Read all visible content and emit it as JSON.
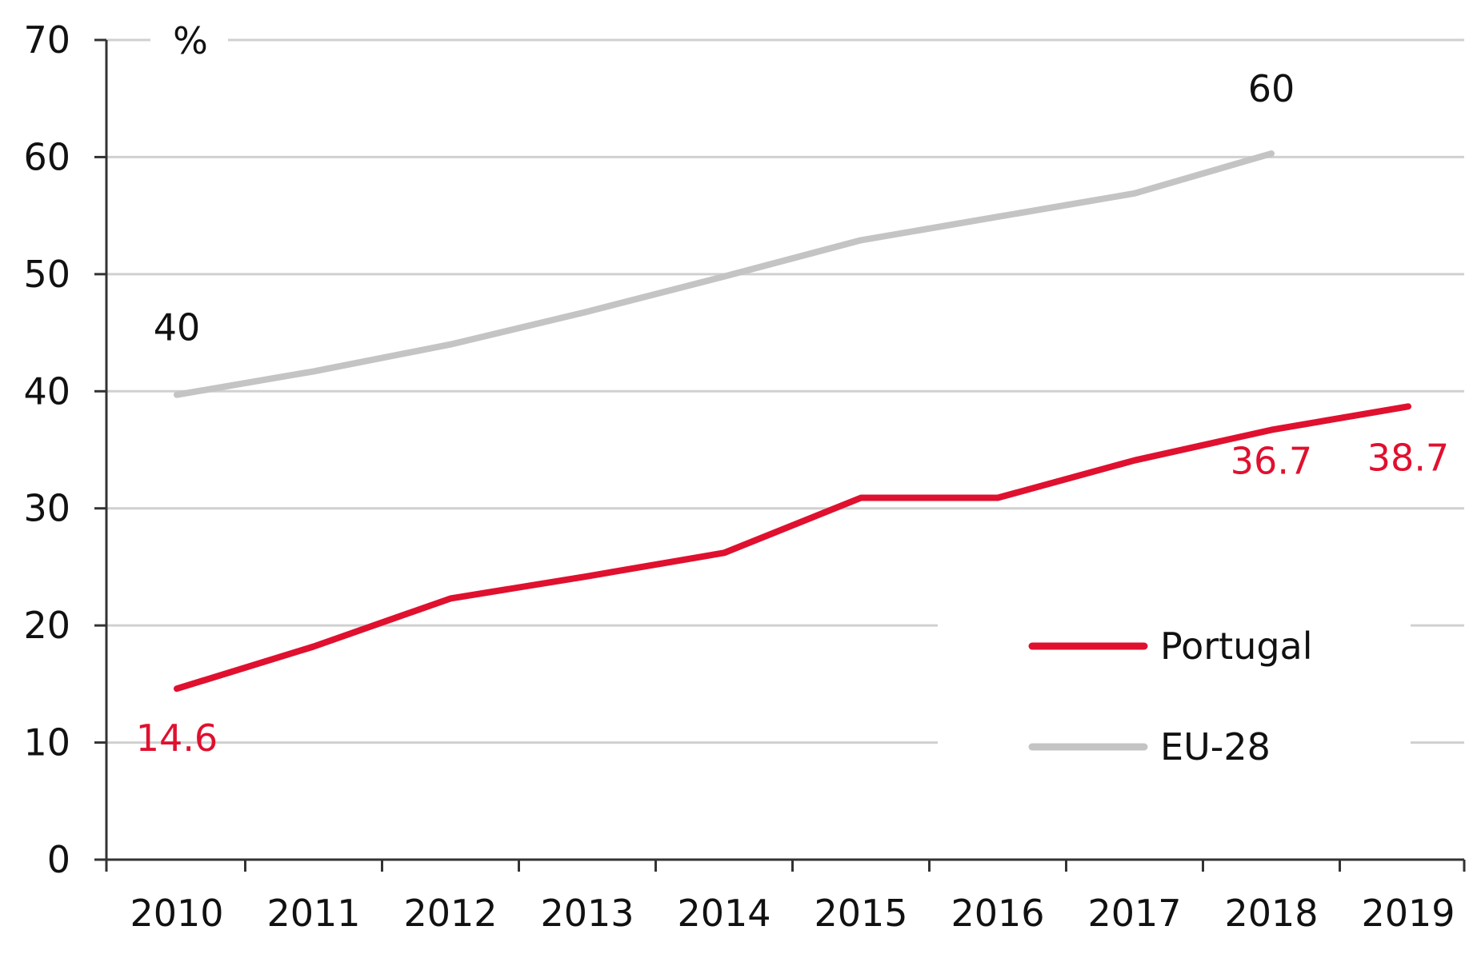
{
  "chart_data": {
    "type": "line",
    "title": "",
    "xlabel": "",
    "ylabel": "%",
    "ylim": [
      0,
      70
    ],
    "y_ticks": [
      "0",
      "10",
      "20",
      "30",
      "40",
      "50",
      "60",
      "70"
    ],
    "categories": [
      "2010",
      "2011",
      "2012",
      "2013",
      "2014",
      "2015",
      "2016",
      "2017",
      "2018",
      "2019"
    ],
    "grid": true,
    "legend_position": "bottom-right",
    "series": [
      {
        "name": "Portugal",
        "color": "#e0102f",
        "values": [
          14.6,
          18.2,
          22.3,
          24.2,
          26.2,
          30.9,
          30.9,
          34.1,
          36.7,
          38.7
        ]
      },
      {
        "name": "EU-28",
        "color": "#c4c4c4",
        "values": [
          39.7,
          41.7,
          44.0,
          46.8,
          49.8,
          52.9,
          54.9,
          56.9,
          60.3,
          null
        ]
      }
    ],
    "annotations": [
      {
        "series": "Portugal",
        "index": 0,
        "text": "14.6"
      },
      {
        "series": "Portugal",
        "index": 8,
        "text": "36.7"
      },
      {
        "series": "Portugal",
        "index": 9,
        "text": "38.7"
      },
      {
        "series": "EU-28",
        "index": 0,
        "text": "40"
      },
      {
        "series": "EU-28",
        "index": 8,
        "text": "60"
      }
    ]
  },
  "colors": {
    "axis": "#333333",
    "grid": "#d0d0d0",
    "text": "#111111"
  }
}
